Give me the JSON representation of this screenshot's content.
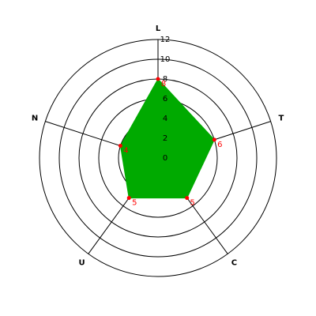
{
  "chart_data": {
    "type": "radar",
    "categories": [
      "L",
      "T",
      "C",
      "U",
      "N"
    ],
    "values": [
      8,
      6,
      5,
      5,
      4
    ],
    "color": "#00aa00",
    "marker_color": "#ff0000",
    "rlim": [
      0,
      12
    ],
    "rticks": [
      0,
      2,
      4,
      6,
      8,
      10,
      12
    ],
    "grid": true
  }
}
